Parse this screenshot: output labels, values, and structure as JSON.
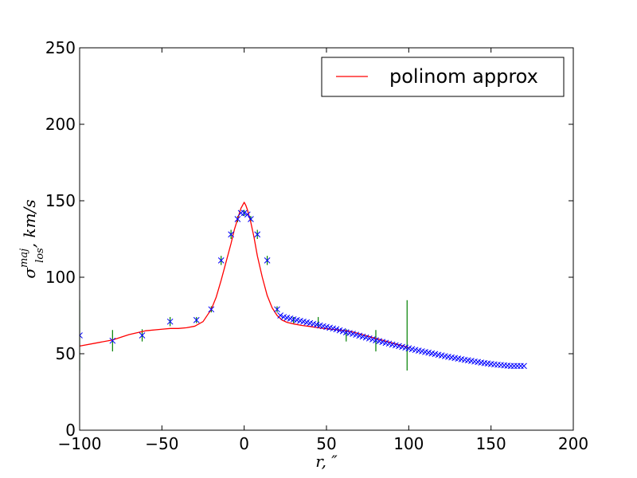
{
  "chart_data": {
    "type": "scatter",
    "title": "",
    "xlabel": "r, ″",
    "ylabel_main": "σ",
    "ylabel_sup": "maj",
    "ylabel_sub": "los",
    "ylabel_rest": ", km/s",
    "xlim": [
      -100,
      200
    ],
    "ylim": [
      0,
      250
    ],
    "xticks": [
      -100,
      -50,
      0,
      50,
      100,
      150,
      200
    ],
    "xtick_labels": [
      "−100",
      "−50",
      "0",
      "50",
      "100",
      "150",
      "200"
    ],
    "yticks": [
      0,
      50,
      100,
      150,
      200,
      250
    ],
    "ytick_labels": [
      "0",
      "50",
      "100",
      "150",
      "200",
      "250"
    ],
    "grid": false,
    "legend": {
      "placement": "top-right",
      "entries": [
        {
          "label": "polinom approx",
          "color": "#ff0000"
        }
      ]
    },
    "series": [
      {
        "name": "polinom approx",
        "kind": "line",
        "color": "#ff0000",
        "x": [
          -100,
          -90,
          -80,
          -70,
          -60,
          -50,
          -45,
          -40,
          -35,
          -30,
          -25,
          -20,
          -17,
          -14,
          -11,
          -8,
          -6,
          -4,
          -2,
          -1,
          0,
          1,
          2,
          4,
          6,
          8,
          11,
          14,
          17,
          20,
          23,
          26,
          30,
          35,
          40,
          45,
          50,
          55,
          60,
          65,
          70,
          80,
          90,
          100
        ],
        "y": [
          55,
          57,
          59,
          62.5,
          65,
          66,
          66.5,
          66.5,
          67,
          68,
          71,
          79,
          87,
          98,
          110,
          122,
          131,
          138,
          145,
          147,
          149,
          147,
          144,
          136,
          126,
          114,
          100,
          88,
          80,
          75,
          72,
          70.5,
          69.5,
          68.5,
          67.8,
          67,
          66.3,
          65.8,
          65.2,
          64.5,
          63,
          60,
          57,
          54
        ]
      },
      {
        "name": "",
        "kind": "points",
        "marker": "x",
        "color": "#0000ff",
        "x": [
          -100,
          -80,
          -62,
          -45,
          -29,
          -20,
          -14,
          -8,
          -4,
          -2,
          0,
          2,
          4,
          8,
          14,
          20,
          22,
          24,
          26,
          28,
          30,
          32,
          34,
          36,
          38,
          40,
          42,
          44,
          46,
          48,
          50,
          52,
          54,
          56,
          58,
          60,
          62,
          64,
          66,
          68,
          70,
          72,
          74,
          76,
          78,
          80,
          82,
          84,
          86,
          88,
          90,
          92,
          94,
          96,
          98,
          100,
          102,
          104,
          106,
          108,
          110,
          112,
          114,
          116,
          118,
          120,
          122,
          124,
          126,
          128,
          130,
          132,
          134,
          136,
          138,
          140,
          142,
          144,
          146,
          148,
          150,
          152,
          154,
          156,
          158,
          160,
          162,
          164,
          166,
          168,
          170
        ],
        "y": [
          62,
          58.5,
          62,
          71,
          72,
          79,
          111,
          128,
          138,
          142,
          142,
          141,
          138,
          128,
          111,
          79,
          75,
          74,
          73.5,
          73,
          72.5,
          72,
          71.5,
          71,
          70.5,
          70,
          69.5,
          69,
          68.5,
          68,
          67.5,
          67,
          66.5,
          66,
          65.3,
          64.7,
          64,
          63.5,
          63,
          62.4,
          61.8,
          61.2,
          60.6,
          60,
          59.4,
          58.8,
          58.2,
          57.7,
          57.1,
          56.6,
          56,
          55.5,
          55,
          54.5,
          54,
          53.5,
          53,
          52.5,
          52,
          51.6,
          51.1,
          50.7,
          50.2,
          49.8,
          49.3,
          48.9,
          48.4,
          48,
          47.6,
          47.2,
          46.8,
          46.4,
          46,
          45.7,
          45.3,
          44.9,
          44.6,
          44.2,
          43.9,
          43.6,
          43.3,
          43,
          42.8,
          42.6,
          42.4,
          42.2,
          42,
          42,
          42,
          42,
          42
        ]
      },
      {
        "name": "",
        "kind": "errorbars",
        "color": "#008000",
        "x": [
          -100,
          -80,
          -62,
          -45,
          -29,
          -20,
          -14,
          -8,
          -4,
          0,
          4,
          8,
          14,
          20,
          30,
          45,
          62,
          80,
          99
        ],
        "y": [
          62,
          58.5,
          62,
          71,
          72,
          79,
          111,
          128,
          138,
          142,
          138,
          128,
          111,
          79,
          72,
          71,
          62,
          58.5,
          62
        ],
        "err": [
          23,
          7,
          4,
          3,
          2,
          2,
          3,
          3,
          2,
          2,
          2,
          3,
          3,
          2,
          2,
          3,
          4,
          7,
          23
        ]
      }
    ]
  }
}
